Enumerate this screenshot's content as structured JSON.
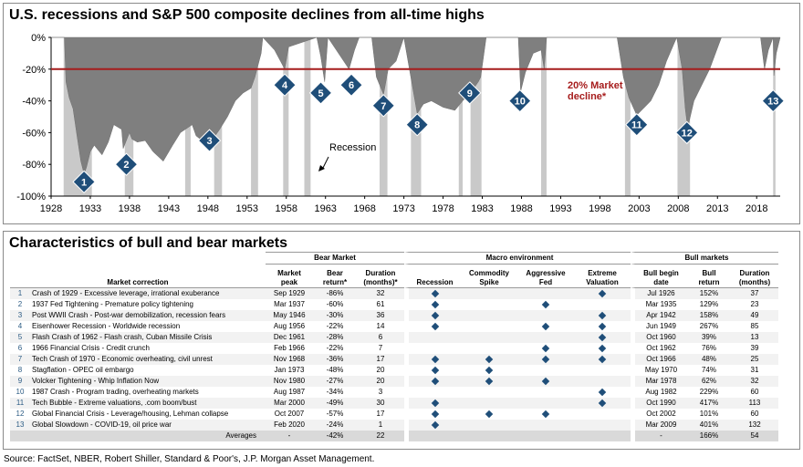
{
  "chart": {
    "title": "U.S. recessions and S&P 500 composite declines from all-time highs",
    "threshold_label_1": "20% Market",
    "threshold_label_2": "decline*",
    "recession_label": "Recession",
    "colors": {
      "area": "#7f7f7f",
      "recession": "#c9c9c9",
      "threshold": "#a61c1c",
      "marker": "#1f4e79"
    }
  },
  "chart_data": {
    "type": "area",
    "xlim": [
      1928,
      2021
    ],
    "ylim": [
      -100,
      0
    ],
    "x_ticks": [
      "1928",
      "1933",
      "1938",
      "1943",
      "1948",
      "1953",
      "1958",
      "1963",
      "1968",
      "1973",
      "1978",
      "1983",
      "1988",
      "1993",
      "1998",
      "2003",
      "2008",
      "2013",
      "2018"
    ],
    "y_ticks": [
      "0%",
      "-20%",
      "-40%",
      "-60%",
      "-80%",
      "-100%"
    ],
    "threshold": -20,
    "series": [
      {
        "x": [
          1928.0,
          1929.7,
          1929.9,
          1930.3,
          1930.8,
          1931.3,
          1931.8,
          1932.2,
          1932.5,
          1933.0,
          1933.5,
          1934.5,
          1935.3,
          1936.0,
          1937.0,
          1937.2,
          1938.0,
          1938.3,
          1939.0,
          1940.0,
          1941.0,
          1942.3,
          1943.5,
          1944.5,
          1946.0,
          1946.5,
          1947.5,
          1948.5,
          1949.5,
          1950.5,
          1951.5,
          1952.5,
          1953.5,
          1954.0,
          1954.8,
          1955.0,
          1956.5,
          1957.8,
          1958.3,
          1961.9,
          1962.4,
          1962.9,
          1963.3,
          1966.0,
          1966.7,
          1967.3,
          1968.9,
          1969.5,
          1970.4,
          1971.0,
          1972.0,
          1973.0,
          1974.7,
          1975.5,
          1976.5,
          1978.0,
          1979.5,
          1980.5,
          1981.5,
          1982.5,
          1982.8,
          1983.5,
          1987.6,
          1987.9,
          1988.5,
          1989.5,
          1990.5,
          1990.9,
          1991.2,
          2000.2,
          2001.0,
          2001.7,
          2002.7,
          2003.5,
          2004.5,
          2005.5,
          2006.5,
          2007.8,
          2008.5,
          2008.9,
          2009.2,
          2010.0,
          2011.0,
          2012.0,
          2013.5,
          2018.5,
          2019.0,
          2019.5,
          2020.1,
          2020.2,
          2020.5,
          2021.0
        ],
        "values": [
          0,
          0,
          -28,
          -38,
          -45,
          -62,
          -78,
          -86,
          -82,
          -72,
          -68,
          -74,
          -66,
          -55,
          -58,
          -70,
          -60,
          -64,
          -66,
          -65,
          -72,
          -78,
          -68,
          -60,
          -55,
          -62,
          -66,
          -65,
          -58,
          -50,
          -40,
          -35,
          -32,
          -25,
          -10,
          0,
          -8,
          -20,
          -6,
          0,
          -12,
          -28,
          0,
          -20,
          -8,
          0,
          0,
          -25,
          -36,
          -20,
          -15,
          0,
          -48,
          -42,
          -40,
          -44,
          -46,
          -40,
          -35,
          -28,
          -25,
          0,
          0,
          -34,
          -22,
          -10,
          -8,
          -20,
          0,
          0,
          -25,
          -38,
          -49,
          -45,
          -40,
          -30,
          -15,
          0,
          -20,
          -45,
          -57,
          -40,
          -30,
          -20,
          0,
          0,
          -20,
          -8,
          0,
          -24,
          -10,
          0
        ]
      }
    ],
    "markers": [
      {
        "label": "1",
        "x": 1932.2,
        "y": -91
      },
      {
        "label": "2",
        "x": 1937.6,
        "y": -80
      },
      {
        "label": "3",
        "x": 1948.2,
        "y": -65
      },
      {
        "label": "4",
        "x": 1957.8,
        "y": -30
      },
      {
        "label": "5",
        "x": 1962.4,
        "y": -35
      },
      {
        "label": "6",
        "x": 1966.3,
        "y": -30
      },
      {
        "label": "7",
        "x": 1970.4,
        "y": -43
      },
      {
        "label": "8",
        "x": 1974.7,
        "y": -55
      },
      {
        "label": "9",
        "x": 1981.4,
        "y": -35
      },
      {
        "label": "10",
        "x": 1987.8,
        "y": -40
      },
      {
        "label": "11",
        "x": 2002.7,
        "y": -55
      },
      {
        "label": "12",
        "x": 2009.1,
        "y": -60
      },
      {
        "label": "13",
        "x": 2020.1,
        "y": -40
      }
    ],
    "recessions": [
      [
        1929.6,
        1933.2
      ],
      [
        1937.4,
        1938.5
      ],
      [
        1945.1,
        1945.8
      ],
      [
        1948.8,
        1949.8
      ],
      [
        1953.5,
        1954.4
      ],
      [
        1957.6,
        1958.3
      ],
      [
        1960.3,
        1961.1
      ],
      [
        1969.9,
        1970.9
      ],
      [
        1973.9,
        1975.2
      ],
      [
        1980.0,
        1980.5
      ],
      [
        1981.5,
        1982.9
      ],
      [
        1990.5,
        1991.2
      ],
      [
        2001.2,
        2001.9
      ],
      [
        2007.9,
        2009.5
      ],
      [
        2020.1,
        2020.4
      ]
    ]
  },
  "table": {
    "title": "Characteristics of bull and bear markets",
    "group_headers": {
      "bear": "Bear Market",
      "macro": "Macro environment",
      "bull": "Bull markets"
    },
    "headers": {
      "correction": "Market correction",
      "peak_1": "Market",
      "peak_2": "peak",
      "bear_return_1": "Bear",
      "bear_return_2": "return*",
      "duration_1": "Duration",
      "duration_2": "(months)*",
      "recession": "Recession",
      "commodity_1": "Commodity",
      "commodity_2": "Spike",
      "fed_1": "Aggressive",
      "fed_2": "Fed",
      "valuation_1": "Extreme",
      "valuation_2": "Valuation",
      "bull_begin_1": "Bull begin",
      "bull_begin_2": "date",
      "bull_return_1": "Bull",
      "bull_return_2": "return",
      "bull_duration_1": "Duration",
      "bull_duration_2": "(months)"
    },
    "rows": [
      {
        "num": "1",
        "name": "Crash of 1929 - Excessive leverage, irrational exuberance",
        "peak": "Sep 1929",
        "bear_return": "-86%",
        "duration": "32",
        "recession": true,
        "commodity": false,
        "fed": false,
        "valuation": true,
        "bull_begin": "Jul 1926",
        "bull_return": "152%",
        "bull_duration": "37"
      },
      {
        "num": "2",
        "name": "1937 Fed Tightening - Premature policy tightening",
        "peak": "Mar 1937",
        "bear_return": "-60%",
        "duration": "61",
        "recession": true,
        "commodity": false,
        "fed": true,
        "valuation": false,
        "bull_begin": "Mar 1935",
        "bull_return": "129%",
        "bull_duration": "23"
      },
      {
        "num": "3",
        "name": "Post WWII Crash - Post-war demobilization, recession fears",
        "peak": "May 1946",
        "bear_return": "-30%",
        "duration": "36",
        "recession": true,
        "commodity": false,
        "fed": false,
        "valuation": true,
        "bull_begin": "Apr 1942",
        "bull_return": "158%",
        "bull_duration": "49"
      },
      {
        "num": "4",
        "name": "Eisenhower Recession - Worldwide recession",
        "peak": "Aug 1956",
        "bear_return": "-22%",
        "duration": "14",
        "recession": true,
        "commodity": false,
        "fed": true,
        "valuation": true,
        "bull_begin": "Jun 1949",
        "bull_return": "267%",
        "bull_duration": "85"
      },
      {
        "num": "5",
        "name": "Flash Crash of 1962 - Flash crash, Cuban Missile Crisis",
        "peak": "Dec 1961",
        "bear_return": "-28%",
        "duration": "6",
        "recession": false,
        "commodity": false,
        "fed": false,
        "valuation": true,
        "bull_begin": "Oct 1960",
        "bull_return": "39%",
        "bull_duration": "13"
      },
      {
        "num": "6",
        "name": "1966 Financial Crisis - Credit crunch",
        "peak": "Feb 1966",
        "bear_return": "-22%",
        "duration": "7",
        "recession": false,
        "commodity": false,
        "fed": true,
        "valuation": true,
        "bull_begin": "Oct 1962",
        "bull_return": "76%",
        "bull_duration": "39"
      },
      {
        "num": "7",
        "name": "Tech Crash of 1970 - Economic overheating, civil unrest",
        "peak": "Nov 1968",
        "bear_return": "-36%",
        "duration": "17",
        "recession": true,
        "commodity": true,
        "fed": true,
        "valuation": true,
        "bull_begin": "Oct 1966",
        "bull_return": "48%",
        "bull_duration": "25"
      },
      {
        "num": "8",
        "name": "Stagflation - OPEC oil embargo",
        "peak": "Jan 1973",
        "bear_return": "-48%",
        "duration": "20",
        "recession": true,
        "commodity": true,
        "fed": false,
        "valuation": false,
        "bull_begin": "May 1970",
        "bull_return": "74%",
        "bull_duration": "31"
      },
      {
        "num": "9",
        "name": "Volcker Tightening - Whip Inflation Now",
        "peak": "Nov 1980",
        "bear_return": "-27%",
        "duration": "20",
        "recession": true,
        "commodity": true,
        "fed": true,
        "valuation": false,
        "bull_begin": "Mar 1978",
        "bull_return": "62%",
        "bull_duration": "32"
      },
      {
        "num": "10",
        "name": "1987 Crash - Program trading, overheating markets",
        "peak": "Aug 1987",
        "bear_return": "-34%",
        "duration": "3",
        "recession": false,
        "commodity": false,
        "fed": false,
        "valuation": true,
        "bull_begin": "Aug 1982",
        "bull_return": "229%",
        "bull_duration": "60"
      },
      {
        "num": "11",
        "name": "Tech Bubble - Extreme valuations, .com boom/bust",
        "peak": "Mar 2000",
        "bear_return": "-49%",
        "duration": "30",
        "recession": true,
        "commodity": false,
        "fed": false,
        "valuation": true,
        "bull_begin": "Oct 1990",
        "bull_return": "417%",
        "bull_duration": "113"
      },
      {
        "num": "12",
        "name": "Global Financial Crisis - Leverage/housing, Lehman collapse",
        "peak": "Oct 2007",
        "bear_return": "-57%",
        "duration": "17",
        "recession": true,
        "commodity": true,
        "fed": true,
        "valuation": false,
        "bull_begin": "Oct 2002",
        "bull_return": "101%",
        "bull_duration": "60"
      },
      {
        "num": "13",
        "name": "Global Slowdown - COVID-19, oil price war",
        "peak": "Feb 2020",
        "bear_return": "-24%",
        "duration": "1",
        "recession": true,
        "commodity": false,
        "fed": false,
        "valuation": false,
        "bull_begin": "Mar 2009",
        "bull_return": "401%",
        "bull_duration": "132"
      }
    ],
    "averages": {
      "label": "Averages",
      "peak": "-",
      "bear_return": "-42%",
      "duration": "22",
      "bull_begin": "-",
      "bull_return": "166%",
      "bull_duration": "54"
    }
  },
  "source": "Source: FactSet, NBER, Robert Shiller, Standard & Poor's, J.P. Morgan Asset Management."
}
